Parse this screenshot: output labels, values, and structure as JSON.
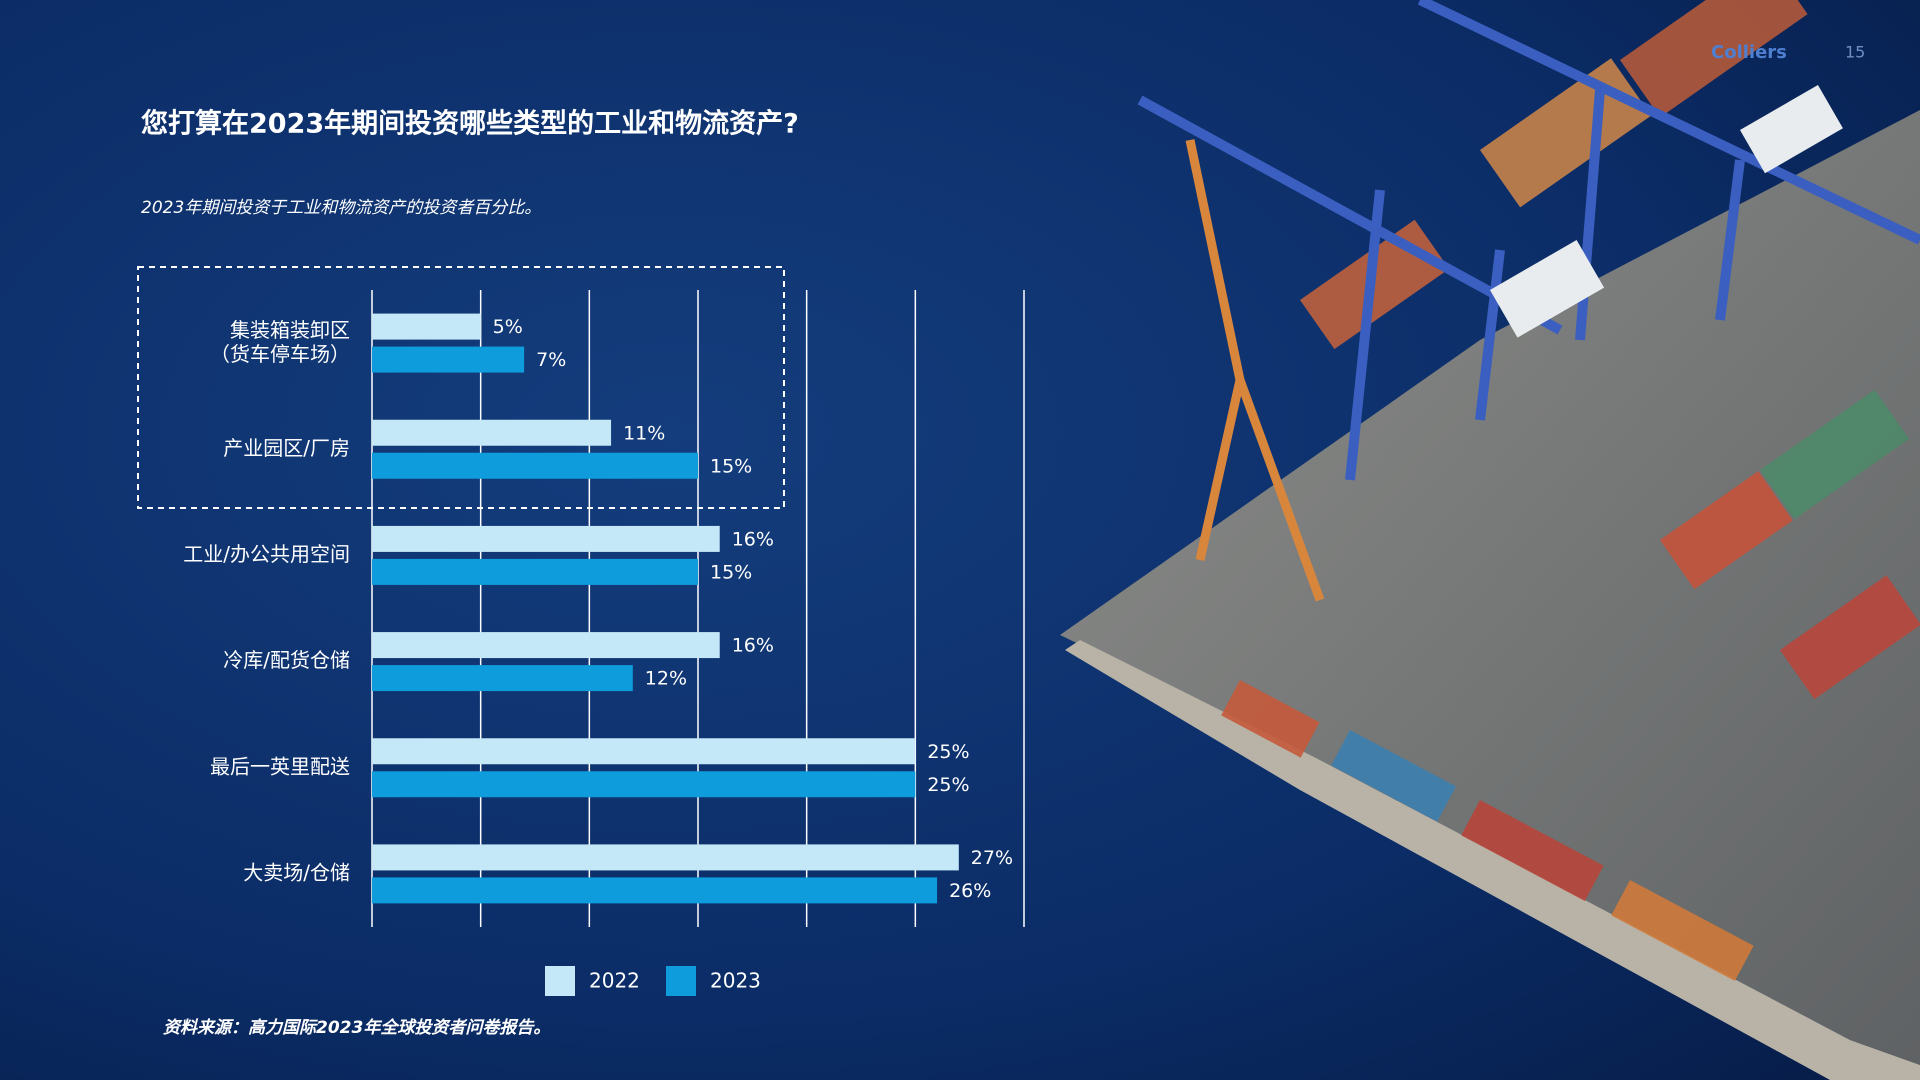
{
  "header": {
    "brand": "Colliers",
    "page": "15"
  },
  "chart_data": {
    "type": "hbar",
    "title": "您打算在2023年期间投资哪些类型的工业和物流资产?",
    "subtitle": "2023年期间投资于工业和物流资产的投资者百分比。",
    "source": "资料来源：高力国际2023年全球投资者问卷报告。",
    "categories": [
      "集装箱装卸区\n（货车停车场）",
      "产业园区/厂房",
      "工业/办公共用空间",
      "冷库/配货仓储",
      "最后一英里配送",
      "大卖场/仓储"
    ],
    "series": [
      {
        "name": "2022",
        "color": "#c4e8f8",
        "values": [
          5,
          11,
          16,
          16,
          25,
          27
        ],
        "value_labels": [
          "5%",
          "11%",
          "16%",
          "16%",
          "25%",
          "27%"
        ]
      },
      {
        "name": "2023",
        "color": "#0e9cdc",
        "values": [
          7,
          15,
          15,
          12,
          25,
          26
        ],
        "value_labels": [
          "7%",
          "15%",
          "15%",
          "12%",
          "25%",
          "26%"
        ]
      }
    ],
    "xlim": [
      0,
      30
    ],
    "xticks": [
      0,
      5,
      10,
      15,
      20,
      25,
      30
    ],
    "grid": true,
    "legend": "bottom"
  }
}
